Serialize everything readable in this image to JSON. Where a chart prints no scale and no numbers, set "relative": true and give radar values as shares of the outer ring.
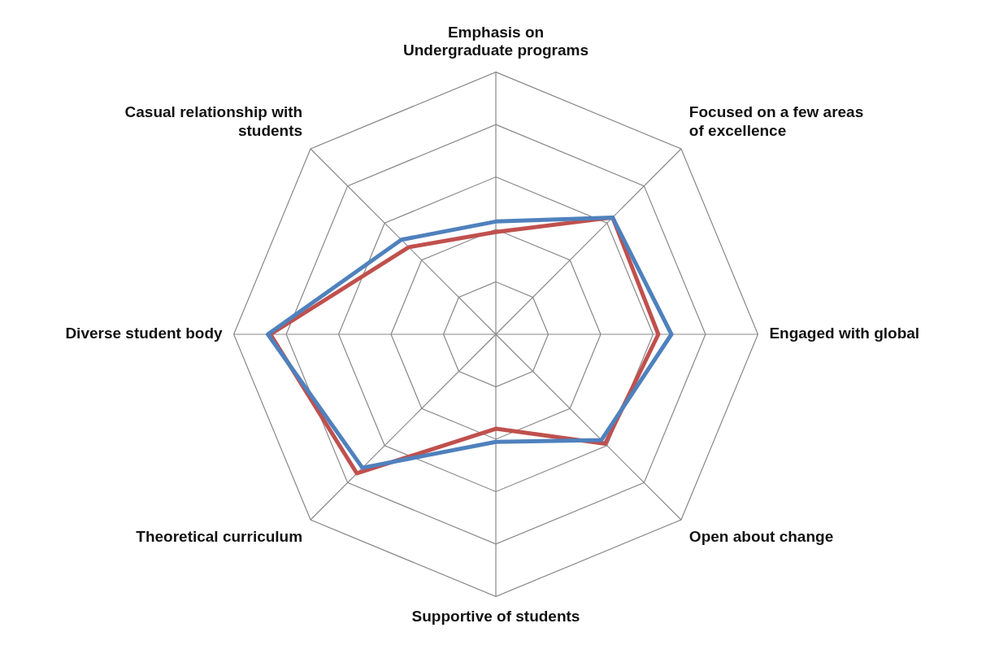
{
  "chart_data": {
    "type": "radar",
    "relative": true,
    "marker": "none",
    "categories": [
      "Emphasis on Undergraduate programs",
      "Focused on a few areas of excellence",
      "Engaged with global",
      "Open about change",
      "Supportive of students",
      "Theoretical curriculum",
      "Diverse student body",
      "Casual relationship with students"
    ],
    "series": [
      {
        "color": "#4f81bd",
        "values": [
          0.43,
          0.63,
          0.67,
          0.57,
          0.41,
          0.72,
          0.87,
          0.51
        ]
      },
      {
        "color": "#c0504d",
        "values": [
          0.39,
          0.63,
          0.62,
          0.59,
          0.36,
          0.75,
          0.86,
          0.47
        ]
      }
    ]
  }
}
